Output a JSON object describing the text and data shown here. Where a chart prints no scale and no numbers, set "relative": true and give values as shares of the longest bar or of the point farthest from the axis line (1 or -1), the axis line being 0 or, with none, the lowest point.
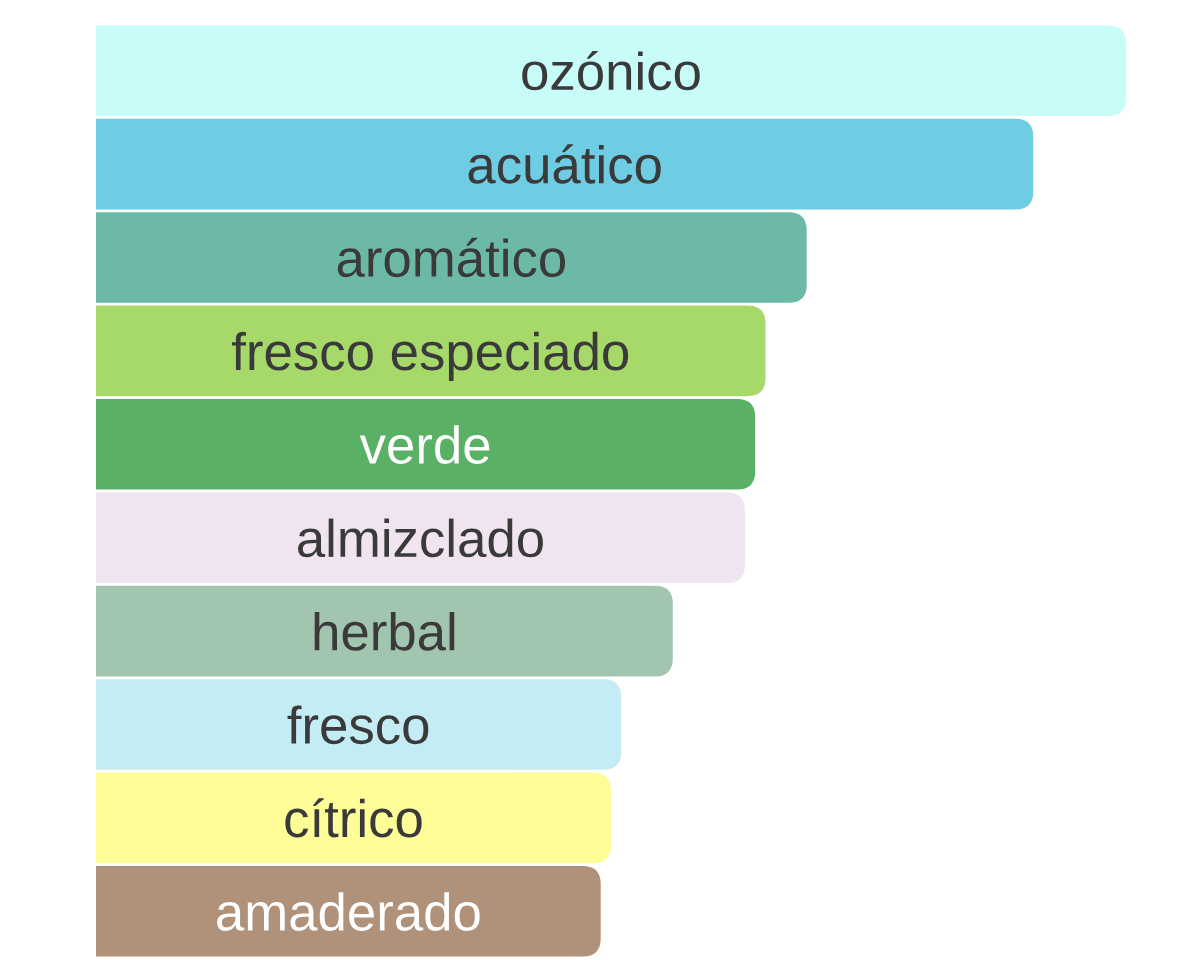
{
  "chart_data": {
    "type": "bar",
    "orientation": "horizontal",
    "relative": true,
    "categories": [
      "ozónico",
      "acuático",
      "aromático",
      "fresco especiado",
      "verde",
      "almizclado",
      "herbal",
      "fresco",
      "cítrico",
      "amaderado"
    ],
    "values": [
      1,
      0.91,
      0.69,
      0.65,
      0.64,
      0.63,
      0.56,
      0.51,
      0.5,
      0.49
    ],
    "colors": [
      "#c8fcf9",
      "#6ecde2",
      "#6db9a8",
      "#a6d86a",
      "#5ab166",
      "#efe4f0",
      "#a2c5b0",
      "#c4ecf4",
      "#fffd98",
      "#b09179"
    ]
  }
}
